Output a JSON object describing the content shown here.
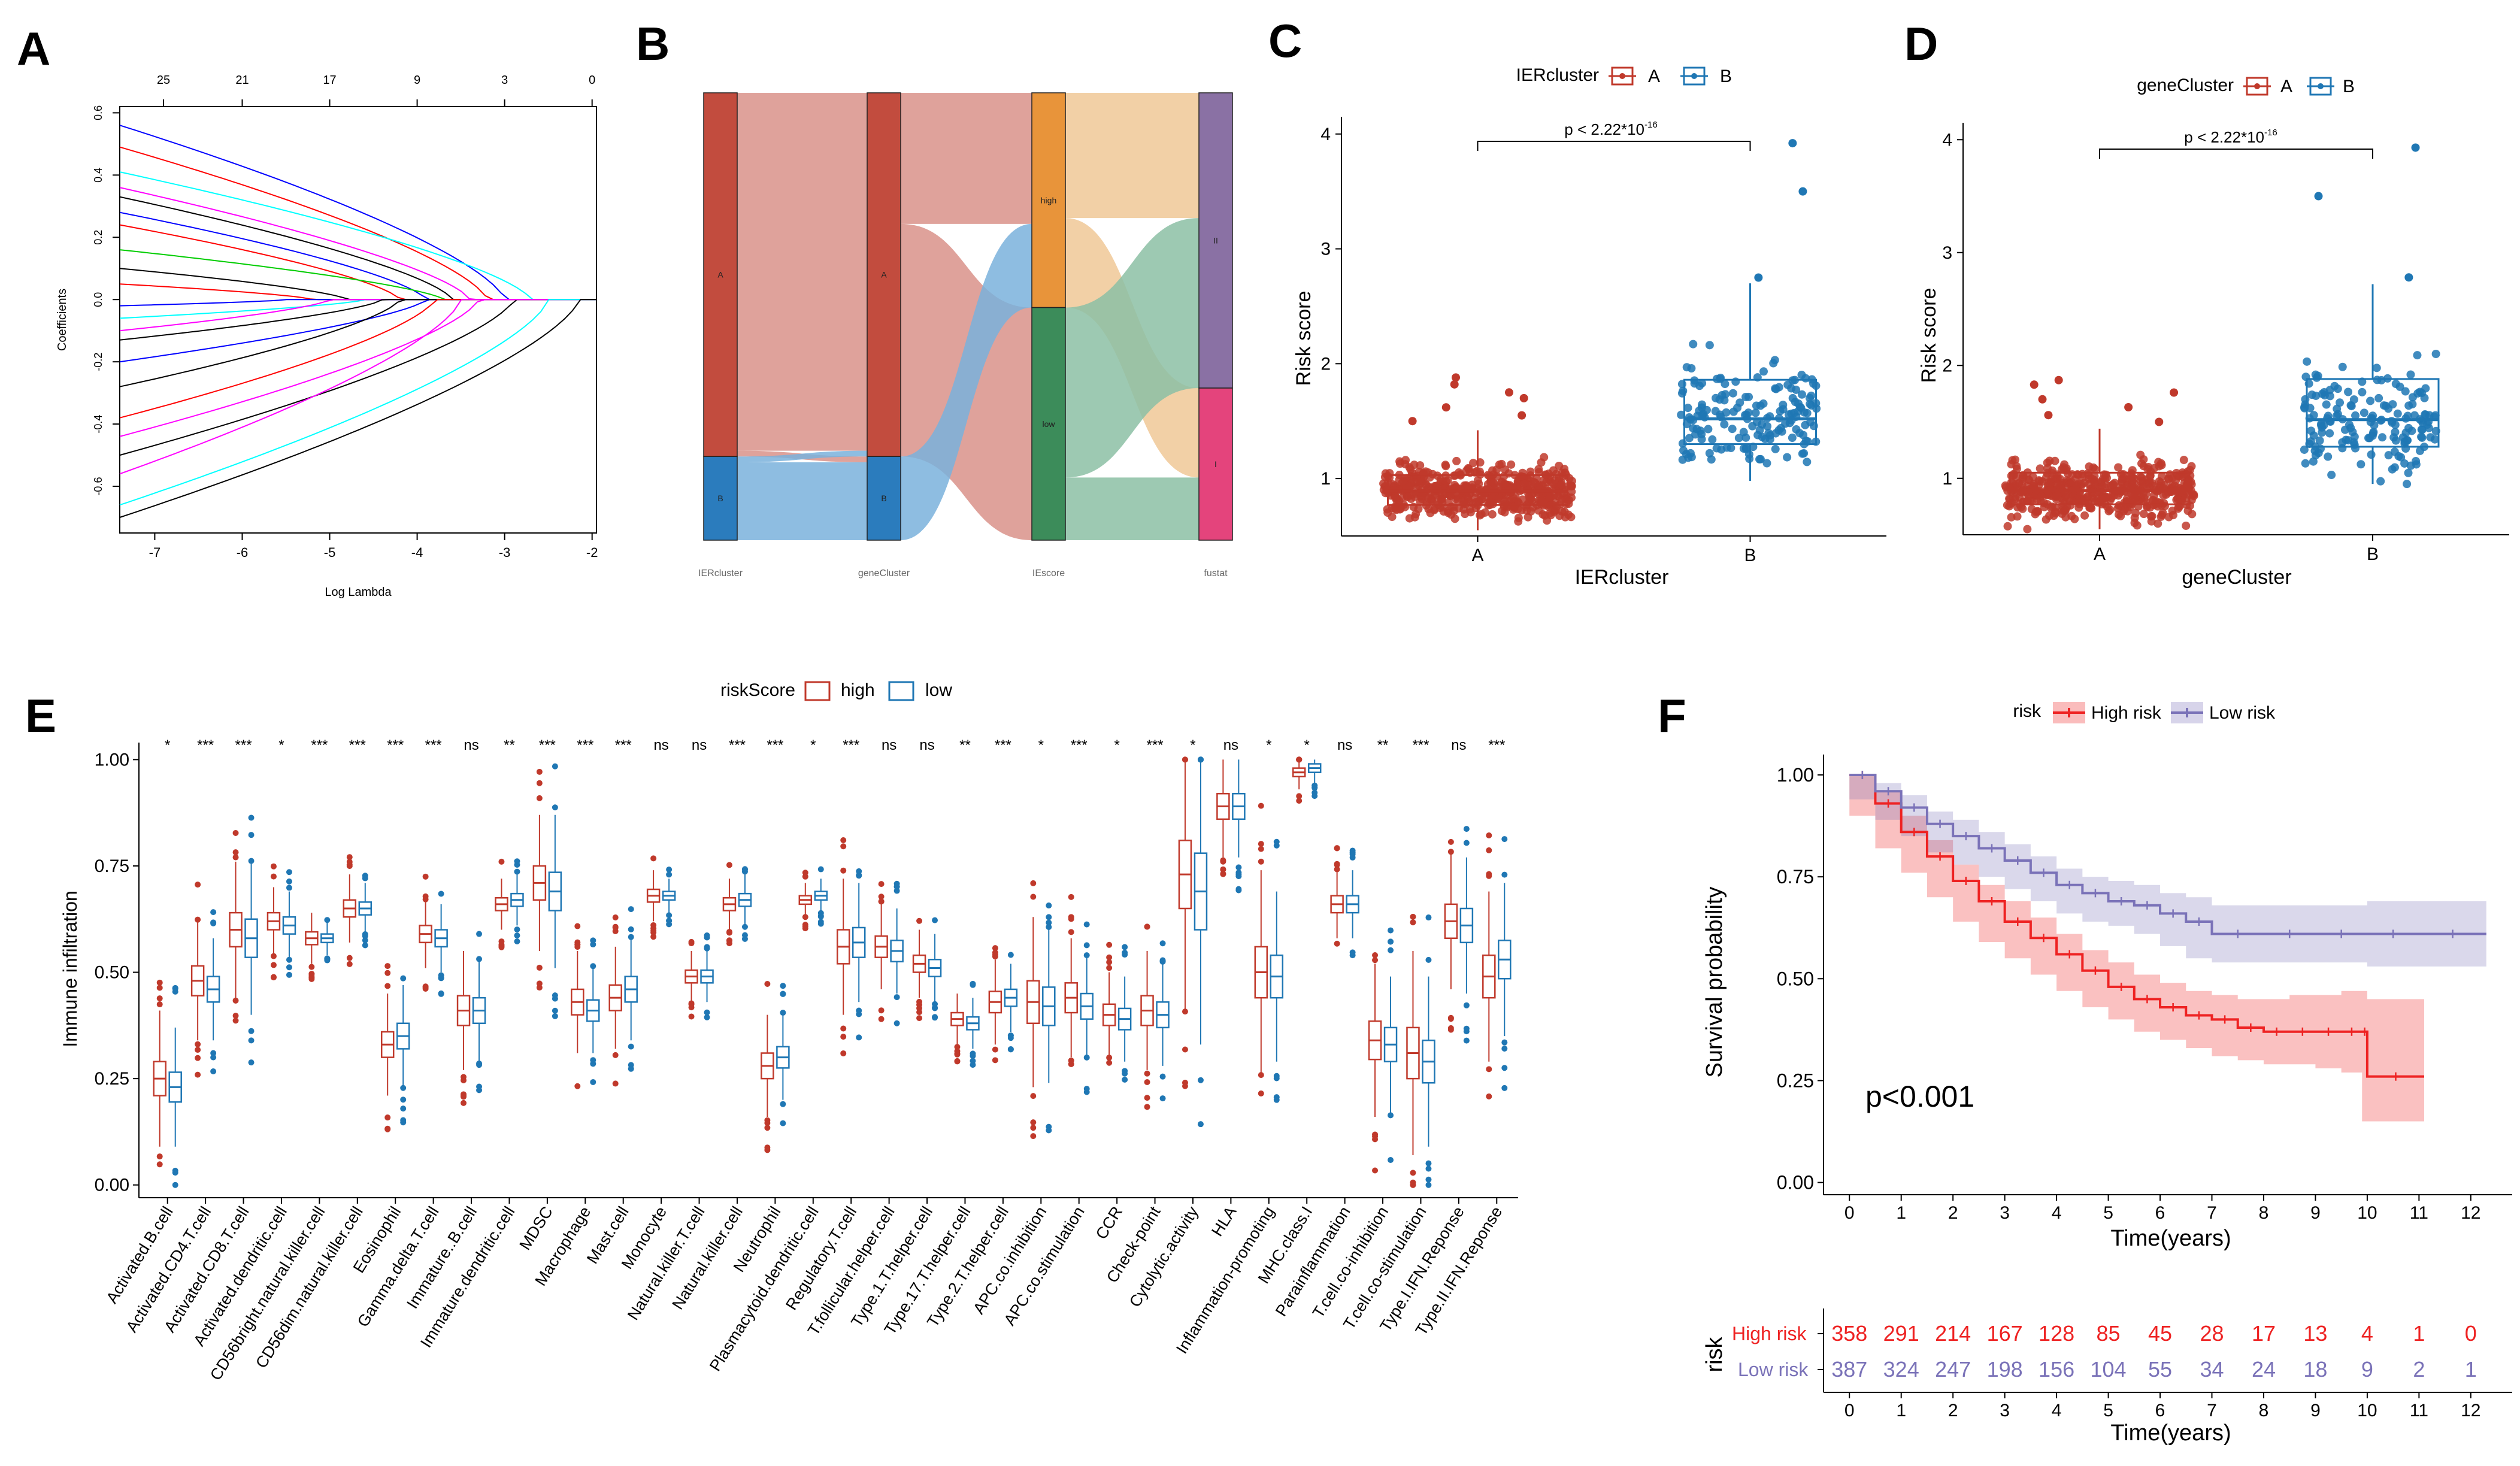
{
  "colors": {
    "red": "#c0392b",
    "blue": "#1f77b4",
    "km_high": "#ee2222",
    "km_low": "#7a72b8",
    "sankey_A": "#c24c3e",
    "sankey_B": "#2b7cbd",
    "sankey_high": "#e8943a",
    "sankey_low": "#3c8c5a",
    "sankey_II": "#8a71a4",
    "sankey_I": "#e4447c",
    "flow_pink": "#d9928a",
    "flow_blue": "#7ab2dc",
    "flow_orange": "#f0c896",
    "flow_green": "#8cc0a4"
  },
  "panel_labels": [
    "A",
    "B",
    "C",
    "D",
    "E",
    "F"
  ],
  "chart_data": [
    {
      "panel": "A",
      "type": "line",
      "title": "",
      "xlabel": "Log Lambda",
      "ylabel": "Coefficients",
      "xlim": [
        -7.4,
        -1.95
      ],
      "ylim": [
        -0.75,
        0.62
      ],
      "xticks": [
        "-7",
        "-6",
        "-5",
        "-4",
        "-3",
        "-2"
      ],
      "xtick_values": [
        -7,
        -6,
        -5,
        -4,
        -3,
        -2
      ],
      "yticks": [
        "0.6",
        "0.4",
        "0.2",
        "0.0",
        "-0.2",
        "-0.4",
        "-0.6"
      ],
      "ytick_values": [
        0.6,
        0.4,
        0.2,
        0.0,
        -0.2,
        -0.4,
        -0.6
      ],
      "top_axis_labels": [
        "25",
        "21",
        "17",
        "9",
        "3",
        "0"
      ],
      "top_axis_values": [
        -6.9,
        -6.0,
        -5.0,
        -4.0,
        -3.0,
        -2.0
      ],
      "series": [
        {
          "color": "#0000ff",
          "c0": 0.56,
          "end": -3.0
        },
        {
          "color": "#ff0000",
          "c0": 0.49,
          "end": -3.2
        },
        {
          "color": "#00ffff",
          "c0": 0.41,
          "end": -2.7
        },
        {
          "color": "#ff00ff",
          "c0": 0.36,
          "end": -3.4
        },
        {
          "color": "#000000",
          "c0": 0.33,
          "end": -3.6
        },
        {
          "color": "#0000ff",
          "c0": 0.28,
          "end": -3.9
        },
        {
          "color": "#ff0000",
          "c0": 0.24,
          "end": -4.2
        },
        {
          "color": "#00cd00",
          "c0": 0.16,
          "end": -3.7
        },
        {
          "color": "#000000",
          "c0": 0.1,
          "end": -4.8
        },
        {
          "color": "#ff0000",
          "c0": 0.05,
          "end": -5.2
        },
        {
          "color": "#0000ff",
          "c0": -0.02,
          "end": -5.5
        },
        {
          "color": "#00ffff",
          "c0": -0.06,
          "end": -4.6
        },
        {
          "color": "#ff00ff",
          "c0": -0.1,
          "end": -5.0
        },
        {
          "color": "#000000",
          "c0": -0.13,
          "end": -4.4
        },
        {
          "color": "#0000ff",
          "c0": -0.2,
          "end": -3.9
        },
        {
          "color": "#000000",
          "c0": -0.28,
          "end": -4.2
        },
        {
          "color": "#ff0000",
          "c0": -0.38,
          "end": -3.8
        },
        {
          "color": "#ff00ff",
          "c0": -0.44,
          "end": -3.3
        },
        {
          "color": "#000000",
          "c0": -0.5,
          "end": -2.9
        },
        {
          "color": "#ff00ff",
          "c0": -0.56,
          "end": -3.5
        },
        {
          "color": "#00ffff",
          "c0": -0.66,
          "end": -2.5
        },
        {
          "color": "#000000",
          "c0": -0.7,
          "end": -2.15
        }
      ]
    },
    {
      "panel": "B",
      "type": "sankey",
      "axes": [
        "IERcluster",
        "geneCluster",
        "IEscore",
        "fustat"
      ],
      "nodes": [
        {
          "axis": "IERcluster",
          "label": "A",
          "size": 0.813
        },
        {
          "axis": "IERcluster",
          "label": "B",
          "size": 0.187
        },
        {
          "axis": "geneCluster",
          "label": "A",
          "size": 0.813
        },
        {
          "axis": "geneCluster",
          "label": "B",
          "size": 0.187
        },
        {
          "axis": "IEscore",
          "label": "high",
          "size": 0.48
        },
        {
          "axis": "IEscore",
          "label": "low",
          "size": 0.52
        },
        {
          "axis": "fustat",
          "label": "II",
          "size": 0.66
        },
        {
          "axis": "fustat",
          "label": "I",
          "size": 0.34
        }
      ],
      "flows": [
        {
          "from": "IERcluster:A",
          "to": "geneCluster:A",
          "value": 0.8
        },
        {
          "from": "IERcluster:A",
          "to": "geneCluster:B",
          "value": 0.013
        },
        {
          "from": "IERcluster:B",
          "to": "geneCluster:A",
          "value": 0.013
        },
        {
          "from": "IERcluster:B",
          "to": "geneCluster:B",
          "value": 0.174
        },
        {
          "from": "geneCluster:A",
          "to": "IEscore:high",
          "value": 0.293
        },
        {
          "from": "geneCluster:A",
          "to": "IEscore:low",
          "value": 0.52
        },
        {
          "from": "geneCluster:B",
          "to": "IEscore:high",
          "value": 0.187
        },
        {
          "from": "IEscore:high",
          "to": "fustat:II",
          "value": 0.28
        },
        {
          "from": "IEscore:high",
          "to": "fustat:I",
          "value": 0.2
        },
        {
          "from": "IEscore:low",
          "to": "fustat:II",
          "value": 0.38
        },
        {
          "from": "IEscore:low",
          "to": "fustat:I",
          "value": 0.14
        }
      ]
    },
    {
      "panel": "C",
      "type": "box",
      "legend_title": "IERcluster",
      "legend": [
        "A",
        "B"
      ],
      "categories": [
        "A",
        "B"
      ],
      "xlabel": "IERcluster",
      "ylabel": "Risk score",
      "ylim": [
        0.5,
        4.15
      ],
      "yticks": [
        "1",
        "2",
        "3",
        "4"
      ],
      "ytick_values": [
        1,
        2,
        3,
        4
      ],
      "pvalue": "p < 2.22*10",
      "pvalue_exp": "-16",
      "boxes": [
        {
          "group": "A",
          "q1": 0.77,
          "median": 0.89,
          "q3": 1.03,
          "whisker_low": 0.55,
          "whisker_high": 1.42,
          "n_points": 520,
          "outliers": [
            1.5,
            1.55,
            1.62,
            1.7,
            1.75,
            1.82,
            1.88
          ]
        },
        {
          "group": "B",
          "q1": 1.3,
          "median": 1.52,
          "q3": 1.86,
          "whisker_low": 0.98,
          "whisker_high": 2.7,
          "n_points": 165,
          "outliers": [
            2.75,
            3.5,
            3.92
          ]
        }
      ]
    },
    {
      "panel": "D",
      "type": "box",
      "legend_title": "geneCluster",
      "legend": [
        "A",
        "B"
      ],
      "categories": [
        "A",
        "B"
      ],
      "xlabel": "geneCluster",
      "ylabel": "Risk score",
      "ylim": [
        0.5,
        4.15
      ],
      "yticks": [
        "1",
        "2",
        "3",
        "4"
      ],
      "ytick_values": [
        1,
        2,
        3,
        4
      ],
      "pvalue": "p < 2.22*10",
      "pvalue_exp": "-16",
      "boxes": [
        {
          "group": "A",
          "q1": 0.77,
          "median": 0.89,
          "q3": 1.05,
          "whisker_low": 0.55,
          "whisker_high": 1.44,
          "n_points": 520,
          "outliers": [
            1.5,
            1.56,
            1.63,
            1.7,
            1.76,
            1.83,
            1.87
          ]
        },
        {
          "group": "B",
          "q1": 1.28,
          "median": 1.52,
          "q3": 1.88,
          "whisker_low": 0.95,
          "whisker_high": 2.72,
          "n_points": 165,
          "outliers": [
            2.78,
            3.5,
            3.93
          ]
        }
      ]
    },
    {
      "panel": "E",
      "type": "box",
      "legend_title": "riskScore",
      "legend": [
        "high",
        "low"
      ],
      "ylabel": "Immune infiltration",
      "ylim": [
        -0.03,
        1.04
      ],
      "yticks": [
        "0.00",
        "0.25",
        "0.50",
        "0.75",
        "1.00"
      ],
      "ytick_values": [
        0,
        0.25,
        0.5,
        0.75,
        1.0
      ],
      "categories": [
        "Activated.B.cell",
        "Activated.CD4.T.cell",
        "Activated.CD8.T.cell",
        "Activated.dendritic.cell",
        "CD56bright.natural.killer.cell",
        "CD56dim.natural.killer.cell",
        "Eosinophil",
        "Gamma.delta.T.cell",
        "Immature..B.cell",
        "Immature.dendritic.cell",
        "MDSC",
        "Macrophage",
        "Mast.cell",
        "Monocyte",
        "Natural.killer.T.cell",
        "Natural.killer.cell",
        "Neutrophil",
        "Plasmacytoid.dendritic.cell",
        "Regulatory.T.cell",
        "T.follicular.helper.cell",
        "Type.1.T.helper.cell",
        "Type.17.T.helper.cell",
        "Type.2.T.helper.cell",
        "APC.co.inhibition",
        "APC.co.stimulation",
        "CCR",
        "Check-point",
        "Cytolytic.activity",
        "HLA",
        "Inflammation-promoting",
        "MHC.class.I",
        "Parainflammation",
        "T.cell.co-inhibition",
        "T.cell.co-stimulation",
        "Type.I.IFN.Reponse",
        "Type.II.IFN.Reponse"
      ],
      "significance": [
        "*",
        "***",
        "***",
        "*",
        "***",
        "***",
        "***",
        "***",
        "ns",
        "**",
        "***",
        "***",
        "***",
        "ns",
        "ns",
        "***",
        "***",
        "*",
        "***",
        "ns",
        "ns",
        "**",
        "***",
        "*",
        "***",
        "*",
        "***",
        "*",
        "ns",
        "*",
        "*",
        "ns",
        "**",
        "***",
        "ns",
        "***"
      ],
      "high_medians": [
        0.25,
        0.48,
        0.6,
        0.62,
        0.58,
        0.65,
        0.33,
        0.59,
        0.41,
        0.66,
        0.71,
        0.43,
        0.44,
        0.68,
        0.49,
        0.66,
        0.28,
        0.67,
        0.56,
        0.56,
        0.52,
        0.39,
        0.43,
        0.43,
        0.44,
        0.4,
        0.41,
        0.73,
        0.89,
        0.5,
        0.97,
        0.66,
        0.34,
        0.31,
        0.62,
        0.49
      ],
      "low_medians": [
        0.23,
        0.46,
        0.58,
        0.61,
        0.58,
        0.65,
        0.35,
        0.58,
        0.41,
        0.67,
        0.69,
        0.41,
        0.46,
        0.68,
        0.49,
        0.67,
        0.3,
        0.68,
        0.57,
        0.55,
        0.51,
        0.38,
        0.44,
        0.42,
        0.42,
        0.39,
        0.4,
        0.69,
        0.89,
        0.49,
        0.98,
        0.66,
        0.33,
        0.29,
        0.61,
        0.53
      ],
      "high_iqr": [
        0.08,
        0.07,
        0.08,
        0.04,
        0.03,
        0.04,
        0.06,
        0.04,
        0.07,
        0.03,
        0.08,
        0.06,
        0.06,
        0.03,
        0.03,
        0.03,
        0.06,
        0.02,
        0.08,
        0.05,
        0.04,
        0.03,
        0.05,
        0.1,
        0.07,
        0.05,
        0.07,
        0.16,
        0.06,
        0.12,
        0.02,
        0.04,
        0.09,
        0.12,
        0.08,
        0.1
      ],
      "low_iqr": [
        0.07,
        0.06,
        0.09,
        0.04,
        0.02,
        0.03,
        0.06,
        0.04,
        0.06,
        0.03,
        0.09,
        0.05,
        0.06,
        0.02,
        0.03,
        0.03,
        0.05,
        0.02,
        0.07,
        0.05,
        0.04,
        0.03,
        0.04,
        0.09,
        0.06,
        0.05,
        0.06,
        0.18,
        0.06,
        0.1,
        0.02,
        0.04,
        0.08,
        0.1,
        0.08,
        0.09
      ]
    },
    {
      "panel": "F",
      "type": "line",
      "legend_title": "risk",
      "legend": [
        "High risk",
        "Low risk"
      ],
      "xlabel": "Time(years)",
      "ylabel": "Survival probability",
      "xlim": [
        -0.5,
        12.8
      ],
      "ylim": [
        -0.03,
        1.05
      ],
      "xticks": [
        "0",
        "1",
        "2",
        "3",
        "4",
        "5",
        "6",
        "7",
        "8",
        "9",
        "10",
        "11",
        "12"
      ],
      "xtick_values": [
        0,
        1,
        2,
        3,
        4,
        5,
        6,
        7,
        8,
        9,
        10,
        11,
        12
      ],
      "yticks": [
        "0.00",
        "0.25",
        "0.50",
        "0.75",
        "1.00"
      ],
      "ytick_values": [
        0,
        0.25,
        0.5,
        0.75,
        1.0
      ],
      "pvalue": "p<0.001",
      "series": [
        {
          "name": "High risk",
          "x": [
            0,
            0.5,
            1,
            1.5,
            2,
            2.5,
            3,
            3.5,
            4,
            4.5,
            5,
            5.5,
            6,
            6.5,
            7,
            7.5,
            8,
            8.5,
            9,
            9.5,
            9.9,
            10.0,
            11.1
          ],
          "y": [
            1.0,
            0.93,
            0.86,
            0.8,
            0.74,
            0.69,
            0.64,
            0.6,
            0.56,
            0.52,
            0.48,
            0.45,
            0.43,
            0.41,
            0.4,
            0.38,
            0.37,
            0.37,
            0.37,
            0.37,
            0.37,
            0.26,
            0.26
          ],
          "lower": [
            1.0,
            0.9,
            0.82,
            0.76,
            0.7,
            0.64,
            0.59,
            0.55,
            0.51,
            0.47,
            0.43,
            0.4,
            0.37,
            0.35,
            0.33,
            0.31,
            0.3,
            0.29,
            0.29,
            0.28,
            0.27,
            0.15,
            0.15
          ],
          "upper": [
            1.0,
            0.96,
            0.9,
            0.84,
            0.78,
            0.73,
            0.69,
            0.65,
            0.61,
            0.57,
            0.54,
            0.51,
            0.49,
            0.47,
            0.46,
            0.45,
            0.45,
            0.46,
            0.46,
            0.47,
            0.47,
            0.45,
            0.45
          ]
        },
        {
          "name": "Low risk",
          "x": [
            0,
            0.5,
            1,
            1.5,
            2,
            2.5,
            3,
            3.5,
            4,
            4.5,
            5,
            5.5,
            6,
            6.5,
            7,
            8,
            9,
            10,
            11,
            12.3
          ],
          "y": [
            1.0,
            0.96,
            0.92,
            0.88,
            0.85,
            0.82,
            0.79,
            0.76,
            0.73,
            0.71,
            0.69,
            0.68,
            0.66,
            0.64,
            0.61,
            0.61,
            0.61,
            0.61,
            0.61,
            0.61
          ],
          "lower": [
            1.0,
            0.94,
            0.89,
            0.85,
            0.81,
            0.78,
            0.75,
            0.72,
            0.69,
            0.66,
            0.64,
            0.63,
            0.61,
            0.58,
            0.55,
            0.54,
            0.54,
            0.54,
            0.53,
            0.53
          ],
          "upper": [
            1.0,
            0.98,
            0.95,
            0.91,
            0.89,
            0.86,
            0.83,
            0.8,
            0.77,
            0.75,
            0.74,
            0.73,
            0.71,
            0.7,
            0.68,
            0.68,
            0.68,
            0.69,
            0.69,
            0.69
          ]
        }
      ],
      "risk_table": {
        "title": "risk",
        "row_labels": [
          "High risk",
          "Low risk"
        ],
        "high": [
          "358",
          "291",
          "214",
          "167",
          "128",
          "85",
          "45",
          "28",
          "17",
          "13",
          "4",
          "1",
          "0"
        ],
        "low": [
          "387",
          "324",
          "247",
          "198",
          "156",
          "104",
          "55",
          "34",
          "24",
          "18",
          "9",
          "2",
          "1"
        ],
        "xlabel": "Time(years)"
      }
    }
  ]
}
